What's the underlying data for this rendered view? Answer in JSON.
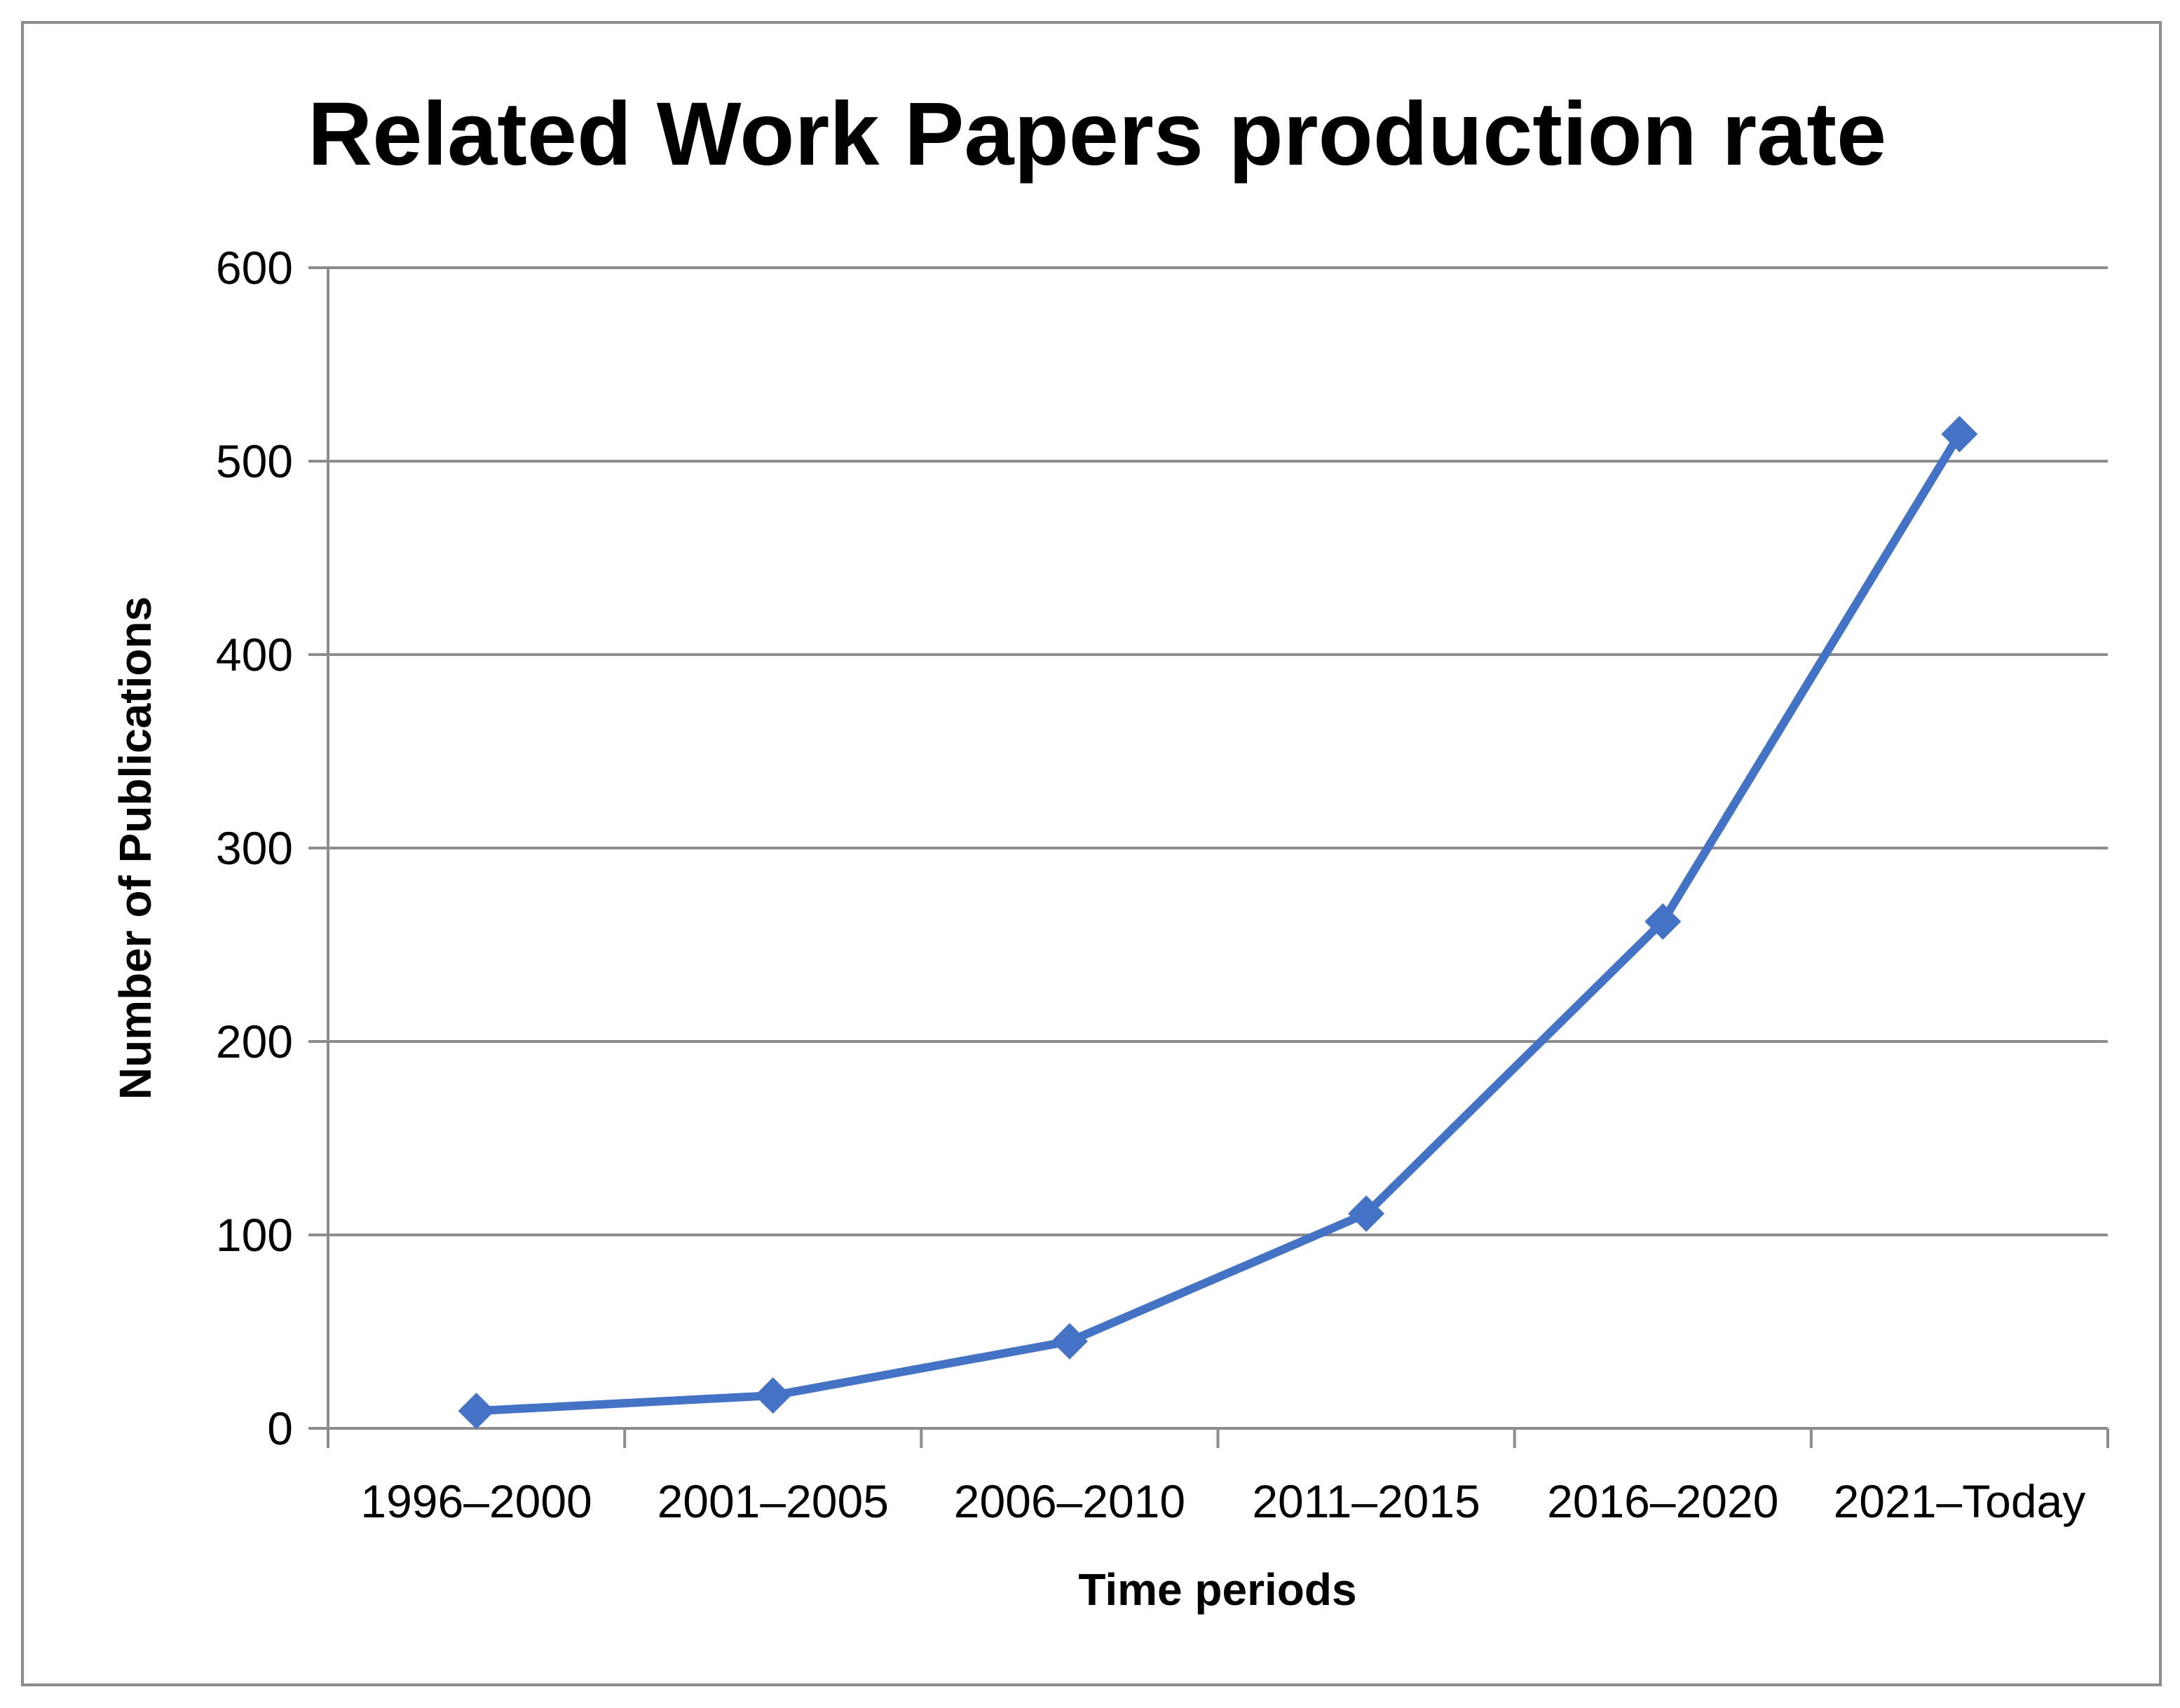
{
  "chart_data": {
    "type": "line",
    "title": "Related Work Papers production rate",
    "xlabel": "Time periods",
    "ylabel": "Number of Publications",
    "categories": [
      "1996–2000",
      "2001–2005",
      "2006–2010",
      "2011–2015",
      "2016–2020",
      "2021–Today"
    ],
    "series": [
      {
        "values": [
          9,
          17,
          45,
          111,
          262,
          514
        ],
        "color": "#4472c4",
        "marker": "diamond"
      }
    ],
    "ylim": [
      0,
      600
    ],
    "yticks": [
      "0",
      "100",
      "200",
      "300",
      "400",
      "500",
      "600"
    ],
    "grid": "horizontal",
    "legend": "none",
    "colors": {
      "line": "#4472c4",
      "grid": "#8c8c8c",
      "axis": "#8c8c8c",
      "frame": "#8c8c8c"
    }
  }
}
